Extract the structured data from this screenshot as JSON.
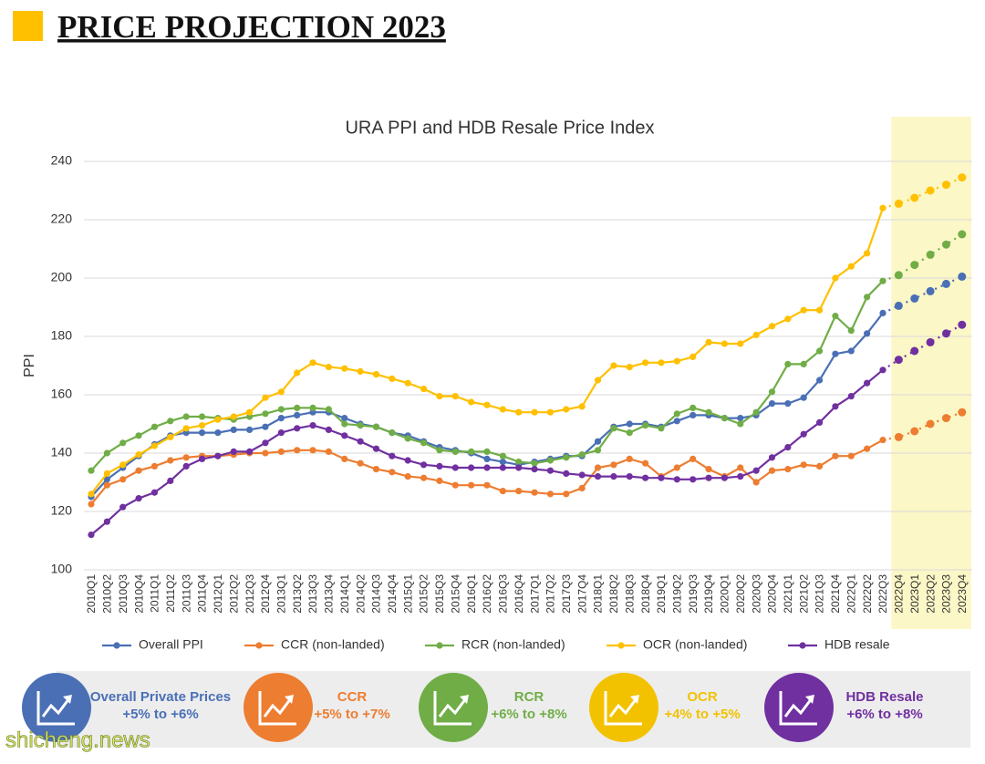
{
  "header": {
    "title": "PRICE PROJECTION 2023"
  },
  "chart_data": {
    "type": "line",
    "title": "URA PPI and HDB Resale Price Index",
    "y_label": "PPI",
    "categories": [
      "2010Q1",
      "2010Q2",
      "2010Q3",
      "2010Q4",
      "2011Q1",
      "2011Q2",
      "2011Q3",
      "2011Q4",
      "2012Q1",
      "2012Q2",
      "2012Q3",
      "2012Q4",
      "2013Q1",
      "2013Q2",
      "2013Q3",
      "2013Q4",
      "2014Q1",
      "2014Q2",
      "2014Q3",
      "2014Q4",
      "2015Q1",
      "2015Q2",
      "2015Q3",
      "2015Q4",
      "2016Q1",
      "2016Q2",
      "2016Q3",
      "2016Q4",
      "2017Q1",
      "2017Q2",
      "2017Q3",
      "2017Q4",
      "2018Q1",
      "2018Q2",
      "2018Q3",
      "2018Q4",
      "2019Q1",
      "2019Q2",
      "2019Q3",
      "2019Q4",
      "2020Q1",
      "2020Q2",
      "2020Q3",
      "2020Q4",
      "2021Q1",
      "2021Q2",
      "2021Q3",
      "2021Q4",
      "2022Q1",
      "2022Q2",
      "2022Q3",
      "2022Q4",
      "2023Q1",
      "2023Q2",
      "2023Q3",
      "2023Q4"
    ],
    "projection_range": [
      "2022Q4",
      "2023Q4"
    ],
    "projection_color": "#fbf7c6",
    "ylim": [
      100,
      240
    ],
    "yticks": [
      100,
      120,
      140,
      160,
      180,
      200,
      220,
      240
    ],
    "grid": true,
    "legend": "bottom",
    "series": [
      {
        "name": "Overall PPI",
        "color": "#4a6fb5",
        "values": [
          125,
          131,
          135,
          139,
          143,
          146,
          147,
          147,
          147,
          148,
          148,
          149,
          152,
          153,
          154,
          154,
          152,
          150,
          149,
          147,
          146,
          144,
          142,
          141,
          140,
          138,
          137,
          136,
          137,
          138,
          139,
          139,
          144,
          149,
          150,
          150,
          149,
          151,
          153,
          153,
          152,
          152,
          153,
          157,
          157,
          159,
          165,
          174,
          175,
          181,
          188,
          190.5,
          193,
          195.5,
          198,
          200.5
        ]
      },
      {
        "name": "CCR (non-landed)",
        "color": "#ed7d31",
        "values": [
          122.5,
          129,
          131,
          134,
          135.5,
          137.5,
          138.5,
          139,
          139,
          139.5,
          140,
          140,
          140.5,
          141,
          141,
          140.5,
          138,
          136.5,
          134.5,
          133.5,
          132,
          131.5,
          130.5,
          129,
          129,
          129,
          127,
          127,
          126.5,
          126,
          126,
          128,
          135,
          136,
          138,
          136.5,
          132,
          135,
          138,
          134.5,
          132,
          135,
          130,
          134,
          134.5,
          136,
          135.5,
          139,
          139,
          141.5,
          144.5,
          145.5,
          147.5,
          150,
          152,
          154
        ]
      },
      {
        "name": "RCR (non-landed)",
        "color": "#70ad47",
        "values": [
          134,
          140,
          143.5,
          146,
          149,
          151,
          152.5,
          152.5,
          152,
          151.5,
          152.5,
          153.5,
          155,
          155.5,
          155.5,
          155,
          150,
          149.5,
          149,
          147,
          145,
          143.5,
          141,
          140.5,
          140.5,
          140.5,
          139,
          137,
          136.5,
          137.5,
          138.5,
          139.5,
          141,
          148.5,
          147,
          149.5,
          148.5,
          153.5,
          155.5,
          154,
          152,
          150,
          154,
          161,
          170.5,
          170.5,
          175,
          187,
          182,
          193.5,
          199,
          201,
          204.5,
          208,
          211.5,
          215
        ]
      },
      {
        "name": "OCR (non-landed)",
        "color": "#ffc000",
        "values": [
          126,
          133,
          136,
          139.5,
          142.5,
          145.5,
          148.5,
          149.5,
          151.5,
          152.5,
          154,
          159,
          161,
          167.5,
          171,
          169.5,
          169,
          168,
          167,
          165.5,
          164,
          162,
          159.5,
          159.5,
          157.5,
          156.5,
          155,
          154,
          154,
          154,
          155,
          156,
          165,
          170,
          169.5,
          171,
          171,
          171.5,
          173,
          178,
          177.5,
          177.5,
          180.5,
          183.5,
          186,
          189,
          189,
          200,
          204,
          208.5,
          224,
          225.5,
          227.5,
          230,
          232,
          234.5
        ]
      },
      {
        "name": "HDB resale",
        "color": "#7030a0",
        "values": [
          112,
          116.5,
          121.5,
          124.5,
          126.5,
          130.5,
          135.5,
          138,
          139,
          140.5,
          140.5,
          143.5,
          147,
          148.5,
          149.5,
          148,
          146,
          144,
          141.5,
          139,
          137.5,
          136,
          135.5,
          135,
          135,
          135,
          135,
          135,
          134.5,
          134,
          133,
          132.5,
          132,
          132,
          132,
          131.5,
          131.5,
          131,
          131,
          131.5,
          131.5,
          132,
          134,
          138.5,
          142,
          146.5,
          150.5,
          156,
          159.5,
          164,
          168.5,
          172,
          175,
          178,
          181,
          184
        ]
      }
    ]
  },
  "cards": [
    {
      "title": "Overall Private Prices",
      "range": "+5% to +6%",
      "color": "#4a6fb5"
    },
    {
      "title": "CCR",
      "range": "+5% to +7%",
      "color": "#ed7d31"
    },
    {
      "title": "RCR",
      "range": "+6% to +8%",
      "color": "#70ad47"
    },
    {
      "title": "OCR",
      "range": "+4% to +5%",
      "color": "#f2c200"
    },
    {
      "title": "HDB Resale",
      "range": "+6% to +8%",
      "color": "#7030a0"
    }
  ],
  "watermark": "shicheng.news"
}
